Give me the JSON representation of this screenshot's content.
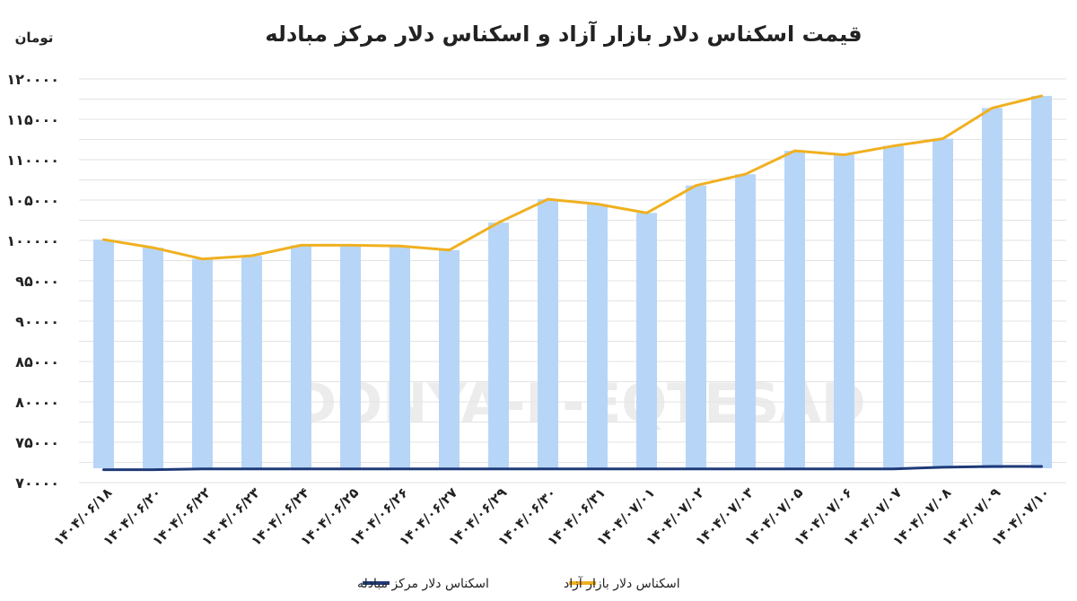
{
  "chart_data": {
    "type": "bar+line",
    "title": "قیمت اسکناس دلار بازار آزاد و اسکناس دلار مرکز مبادله",
    "unit_label": "تومان",
    "watermark": "DONYA-E-EQTESAD",
    "ylim": [
      70000,
      120000
    ],
    "yticks": [
      "۱۲۰۰۰۰",
      "۱۱۵۰۰۰",
      "۱۱۰۰۰۰",
      "۱۰۵۰۰۰",
      "۱۰۰۰۰۰",
      "۹۵۰۰۰",
      "۹۰۰۰۰",
      "۸۵۰۰۰",
      "۸۰۰۰۰",
      "۷۵۰۰۰",
      "۷۰۰۰۰"
    ],
    "ytick_values": [
      120000,
      115000,
      110000,
      105000,
      100000,
      95000,
      90000,
      85000,
      80000,
      75000,
      70000
    ],
    "categories": [
      "۱۴۰۴/۰۶/۱۸",
      "۱۴۰۴/۰۶/۲۰",
      "۱۴۰۴/۰۶/۲۲",
      "۱۴۰۴/۰۶/۲۳",
      "۱۴۰۴/۰۶/۲۴",
      "۱۴۰۴/۰۶/۲۵",
      "۱۴۰۴/۰۶/۲۶",
      "۱۴۰۴/۰۶/۲۷",
      "۱۴۰۴/۰۶/۲۹",
      "۱۴۰۴/۰۶/۳۰",
      "۱۴۰۴/۰۶/۳۱",
      "۱۴۰۴/۰۷/۰۱",
      "۱۴۰۴/۰۷/۰۲",
      "۱۴۰۴/۰۷/۰۳",
      "۱۴۰۴/۰۷/۰۵",
      "۱۴۰۴/۰۷/۰۶",
      "۱۴۰۴/۰۷/۰۷",
      "۱۴۰۴/۰۷/۰۸",
      "۱۴۰۴/۰۷/۰۹",
      "۱۴۰۴/۰۷/۱۰"
    ],
    "series": [
      {
        "name": "اسکناس دلار بازار آزاد",
        "render": "bar+line",
        "color": "#f0b020",
        "bar_color": "#b7d6f7",
        "values": [
          100100,
          99100,
          97700,
          98100,
          99400,
          99400,
          99300,
          98800,
          102200,
          105100,
          104500,
          103400,
          106800,
          108200,
          111100,
          110600,
          111700,
          112600,
          116400,
          117900
        ]
      },
      {
        "name": "اسکناس دلار مرکز مبادله",
        "render": "line",
        "color": "#1f3a78",
        "values": [
          71600,
          71600,
          71700,
          71700,
          71700,
          71700,
          71700,
          71700,
          71700,
          71700,
          71700,
          71700,
          71700,
          71700,
          71700,
          71700,
          71700,
          71900,
          72000,
          72000
        ]
      }
    ],
    "legend_position": "bottom",
    "grid": true
  }
}
